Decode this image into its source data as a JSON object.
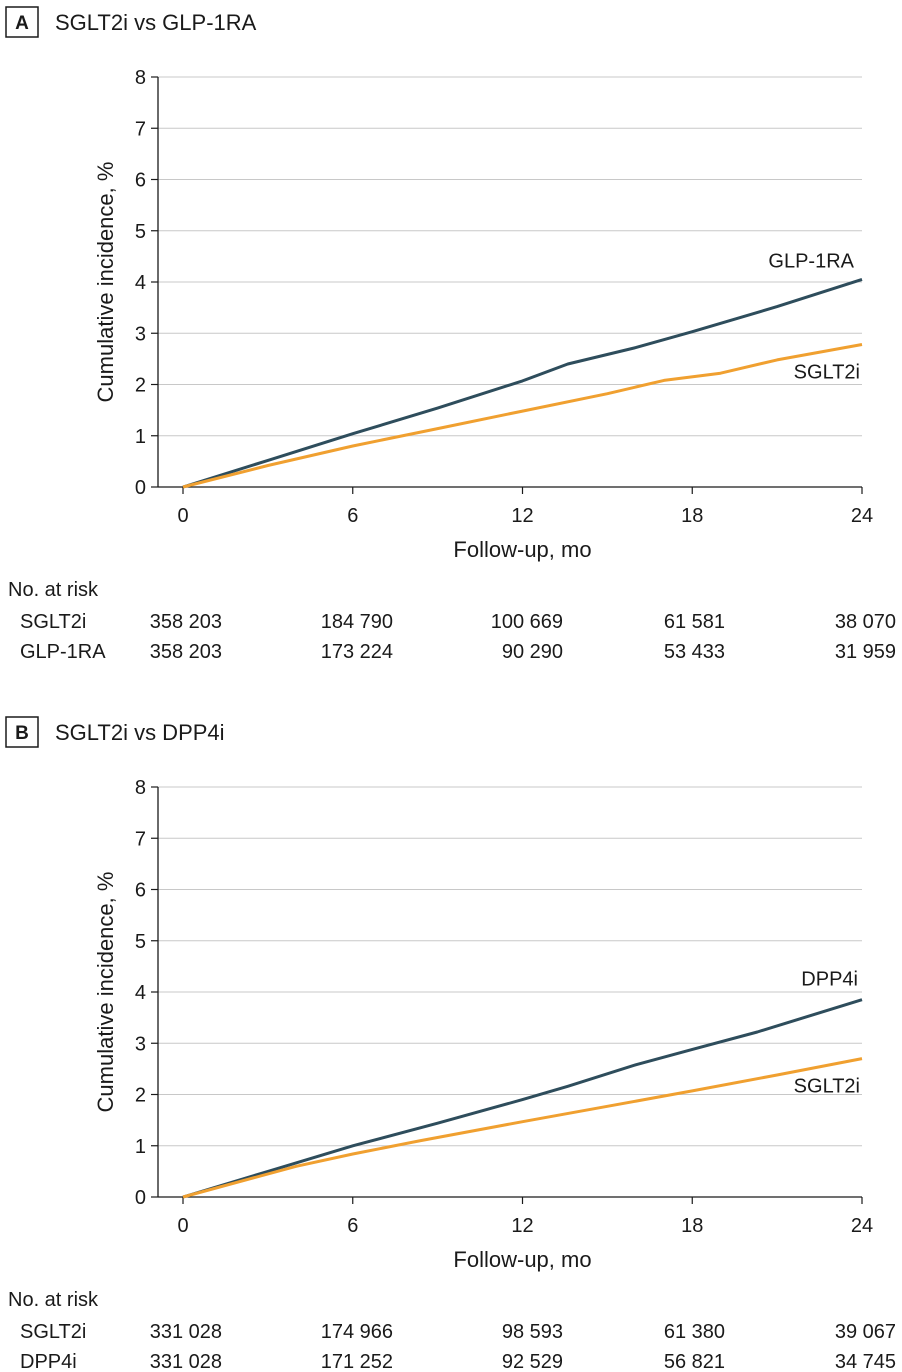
{
  "chart_data": [
    {
      "type": "line",
      "panel_letter": "A",
      "title": "SGLT2i vs GLP-1RA",
      "xlabel": "Follow-up, mo",
      "ylabel": "Cumulative incidence, %",
      "xlim": [
        0,
        24
      ],
      "ylim": [
        0,
        8
      ],
      "x_ticks": [
        "0",
        "6",
        "12",
        "18",
        "24"
      ],
      "y_ticks": [
        "0",
        "1",
        "2",
        "3",
        "4",
        "5",
        "6",
        "7",
        "8"
      ],
      "grid": "horizontal",
      "series": [
        {
          "name": "GLP-1RA",
          "color": "#2e4d5c",
          "points": [
            [
              0,
              0
            ],
            [
              3,
              0.52
            ],
            [
              6,
              1.04
            ],
            [
              9,
              1.54
            ],
            [
              12,
              2.07
            ],
            [
              13.6,
              2.4
            ],
            [
              16,
              2.72
            ],
            [
              18,
              3.03
            ],
            [
              21,
              3.52
            ],
            [
              24,
              4.05
            ]
          ]
        },
        {
          "name": "SGLT2i",
          "color": "#f0a030",
          "points": [
            [
              0,
              0
            ],
            [
              3,
              0.42
            ],
            [
              6,
              0.8
            ],
            [
              9,
              1.14
            ],
            [
              12,
              1.48
            ],
            [
              15,
              1.82
            ],
            [
              17,
              2.08
            ],
            [
              19,
              2.22
            ],
            [
              21,
              2.48
            ],
            [
              24,
              2.78
            ]
          ]
        }
      ],
      "at_risk": {
        "heading": "No. at risk",
        "rows": [
          {
            "label": "SGLT2i",
            "values": [
              "358 203",
              "184 790",
              "100 669",
              "61 581",
              "38 070"
            ]
          },
          {
            "label": "GLP-1RA",
            "values": [
              "358 203",
              "173 224",
              "90 290",
              "53 433",
              "31 959"
            ]
          }
        ]
      }
    },
    {
      "type": "line",
      "panel_letter": "B",
      "title": "SGLT2i vs DPP4i",
      "xlabel": "Follow-up, mo",
      "ylabel": "Cumulative incidence, %",
      "xlim": [
        0,
        24
      ],
      "ylim": [
        0,
        8
      ],
      "x_ticks": [
        "0",
        "6",
        "12",
        "18",
        "24"
      ],
      "y_ticks": [
        "0",
        "1",
        "2",
        "3",
        "4",
        "5",
        "6",
        "7",
        "8"
      ],
      "grid": "horizontal",
      "series": [
        {
          "name": "DPP4i",
          "color": "#2e4d5c",
          "points": [
            [
              0,
              0
            ],
            [
              3,
              0.5
            ],
            [
              6,
              1.0
            ],
            [
              9,
              1.44
            ],
            [
              12,
              1.9
            ],
            [
              13.6,
              2.16
            ],
            [
              16,
              2.58
            ],
            [
              18,
              2.88
            ],
            [
              20.3,
              3.22
            ],
            [
              24,
              3.85
            ]
          ]
        },
        {
          "name": "SGLT2i",
          "color": "#f0a030",
          "points": [
            [
              0,
              0
            ],
            [
              4,
              0.6
            ],
            [
              6,
              0.84
            ],
            [
              8.4,
              1.1
            ],
            [
              12,
              1.47
            ],
            [
              15,
              1.77
            ],
            [
              18,
              2.07
            ],
            [
              21,
              2.38
            ],
            [
              24,
              2.7
            ]
          ]
        }
      ],
      "at_risk": {
        "heading": "No. at risk",
        "rows": [
          {
            "label": "SGLT2i",
            "values": [
              "331 028",
              "174 966",
              "98 593",
              "61 380",
              "39 067"
            ]
          },
          {
            "label": "DPP4i",
            "values": [
              "331 028",
              "171 252",
              "92 529",
              "56 821",
              "34 745"
            ]
          }
        ]
      }
    }
  ]
}
